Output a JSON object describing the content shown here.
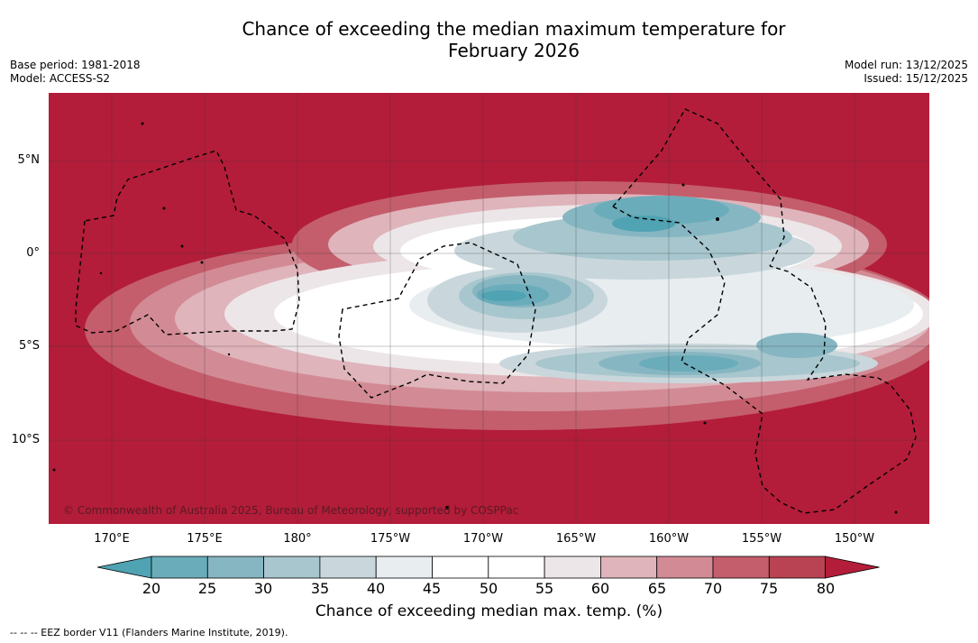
{
  "title_line1": "Chance of exceeding the median maximum temperature for",
  "title_line2": "February 2026",
  "base_period": "Base period: 1981-2018",
  "model": "Model: ACCESS-S2",
  "model_run": "Model run: 13/12/2025",
  "issued": "Issued: 15/12/2025",
  "copyright": "© Commonwealth of Australia 2025, Bureau of Meteorology, supported by COSPPac",
  "lon_ticks": [
    "170°E",
    "175°E",
    "180°",
    "175°W",
    "170°W",
    "165°W",
    "160°W",
    "155°W",
    "150°W"
  ],
  "lat_ticks": [
    "5°N",
    "0°",
    "5°S",
    "10°S"
  ],
  "colorbar": {
    "ticks": [
      "20",
      "25",
      "30",
      "35",
      "40",
      "45",
      "50",
      "55",
      "60",
      "65",
      "70",
      "75",
      "80"
    ],
    "label": "Chance of exceeding median max. temp. (%)",
    "colors": [
      "#4fa3b3",
      "#6aacba",
      "#86b6c2",
      "#a7c6cd",
      "#c9d7dc",
      "#e8edf0",
      "#ffffff",
      "#ffffff",
      "#ece6e8",
      "#dfb4bb",
      "#d28b95",
      "#c45e6c",
      "#b94352",
      "#b31d3a"
    ]
  },
  "legend_eez": "--  --  -- EEZ border V11 (Flanders Marine Institute, 2019).",
  "colors": {
    "background_high": "#b31d3a"
  }
}
